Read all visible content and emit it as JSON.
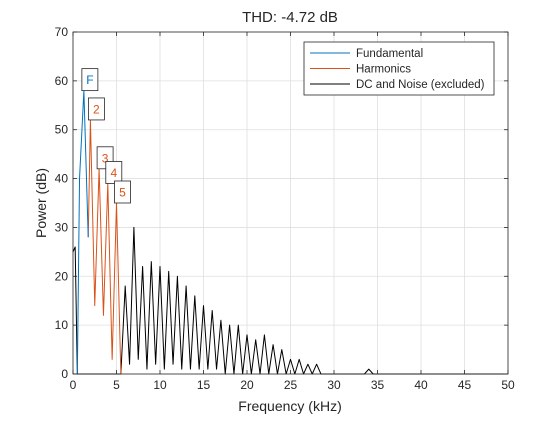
{
  "chart_data": {
    "type": "line",
    "title": "THD:  -4.72 dB",
    "xlabel": "Frequency (kHz)",
    "ylabel": "Power (dB)",
    "xlim": [
      0,
      50
    ],
    "ylim": [
      0,
      70
    ],
    "x_ticks": [
      "0",
      "5",
      "10",
      "15",
      "20",
      "25",
      "30",
      "35",
      "40",
      "45",
      "50"
    ],
    "y_ticks": [
      "0",
      "10",
      "20",
      "30",
      "40",
      "50",
      "60",
      "70"
    ],
    "grid": true,
    "legend_position": "top-right",
    "colors": {
      "fundamental": "#0072BD",
      "harmonics": "#D95319",
      "noise": "#000000",
      "grid": "#dfdfdf",
      "axes": "#262626"
    },
    "series": [
      {
        "name": "Fundamental",
        "x": [
          0.5,
          0.75,
          1.25,
          1.75
        ],
        "y": [
          0,
          40,
          58,
          28
        ]
      },
      {
        "name": "Harmonics",
        "x": [
          1.75,
          2.0,
          2.5,
          3.0,
          3.5,
          4.0,
          4.5,
          5.0,
          5.5
        ],
        "y": [
          28,
          52,
          14,
          42,
          12,
          39,
          3,
          35,
          0
        ]
      },
      {
        "name": "DC and Noise (excluded)",
        "x": [
          0,
          0.25,
          0.5,
          5.5,
          6.0,
          6.5,
          7.0,
          7.5,
          8.0,
          8.5,
          9.0,
          9.5,
          10.0,
          10.5,
          11.0,
          11.5,
          12.0,
          12.5,
          13.0,
          13.5,
          14.0,
          14.5,
          15.0,
          15.5,
          16.0,
          16.5,
          17.0,
          17.5,
          18.0,
          18.5,
          19.0,
          19.5,
          20.0,
          20.5,
          21.0,
          21.5,
          22.0,
          22.5,
          23.0,
          23.5,
          24.0,
          24.5,
          25.0,
          25.5,
          26.0,
          26.5,
          27.0,
          27.5,
          28.0,
          28.5,
          29.0,
          29.5,
          30.0,
          30.5,
          31.0,
          31.5,
          32.0,
          32.5,
          33.0,
          33.5,
          34.0,
          34.5,
          35.0,
          36.0,
          38.0,
          40.0,
          42.0,
          44.0,
          46.0,
          48.0,
          50.0
        ],
        "y": [
          25,
          26,
          0,
          0,
          18,
          2,
          30,
          3,
          22,
          1,
          23,
          2,
          22,
          1,
          21,
          2,
          20,
          1,
          18,
          1,
          16,
          1,
          14,
          1,
          13,
          1,
          11,
          0,
          10,
          0,
          10,
          0,
          8,
          0,
          7,
          0,
          8,
          0,
          6,
          0,
          5,
          0,
          3,
          0,
          3,
          0,
          2,
          0,
          2,
          0,
          0,
          0,
          0,
          0,
          0,
          0,
          0,
          0,
          0,
          0,
          1,
          0,
          0,
          0,
          0,
          0,
          0,
          0,
          0,
          0,
          0
        ]
      }
    ],
    "annotations": [
      {
        "label": "F",
        "x": 1.25,
        "y": 58,
        "series": "Fundamental"
      },
      {
        "label": "2",
        "x": 2.0,
        "y": 52,
        "series": "Harmonics"
      },
      {
        "label": "3",
        "x": 3.0,
        "y": 42,
        "series": "Harmonics"
      },
      {
        "label": "4",
        "x": 4.0,
        "y": 39,
        "series": "Harmonics"
      },
      {
        "label": "5",
        "x": 5.0,
        "y": 35,
        "series": "Harmonics"
      }
    ]
  }
}
